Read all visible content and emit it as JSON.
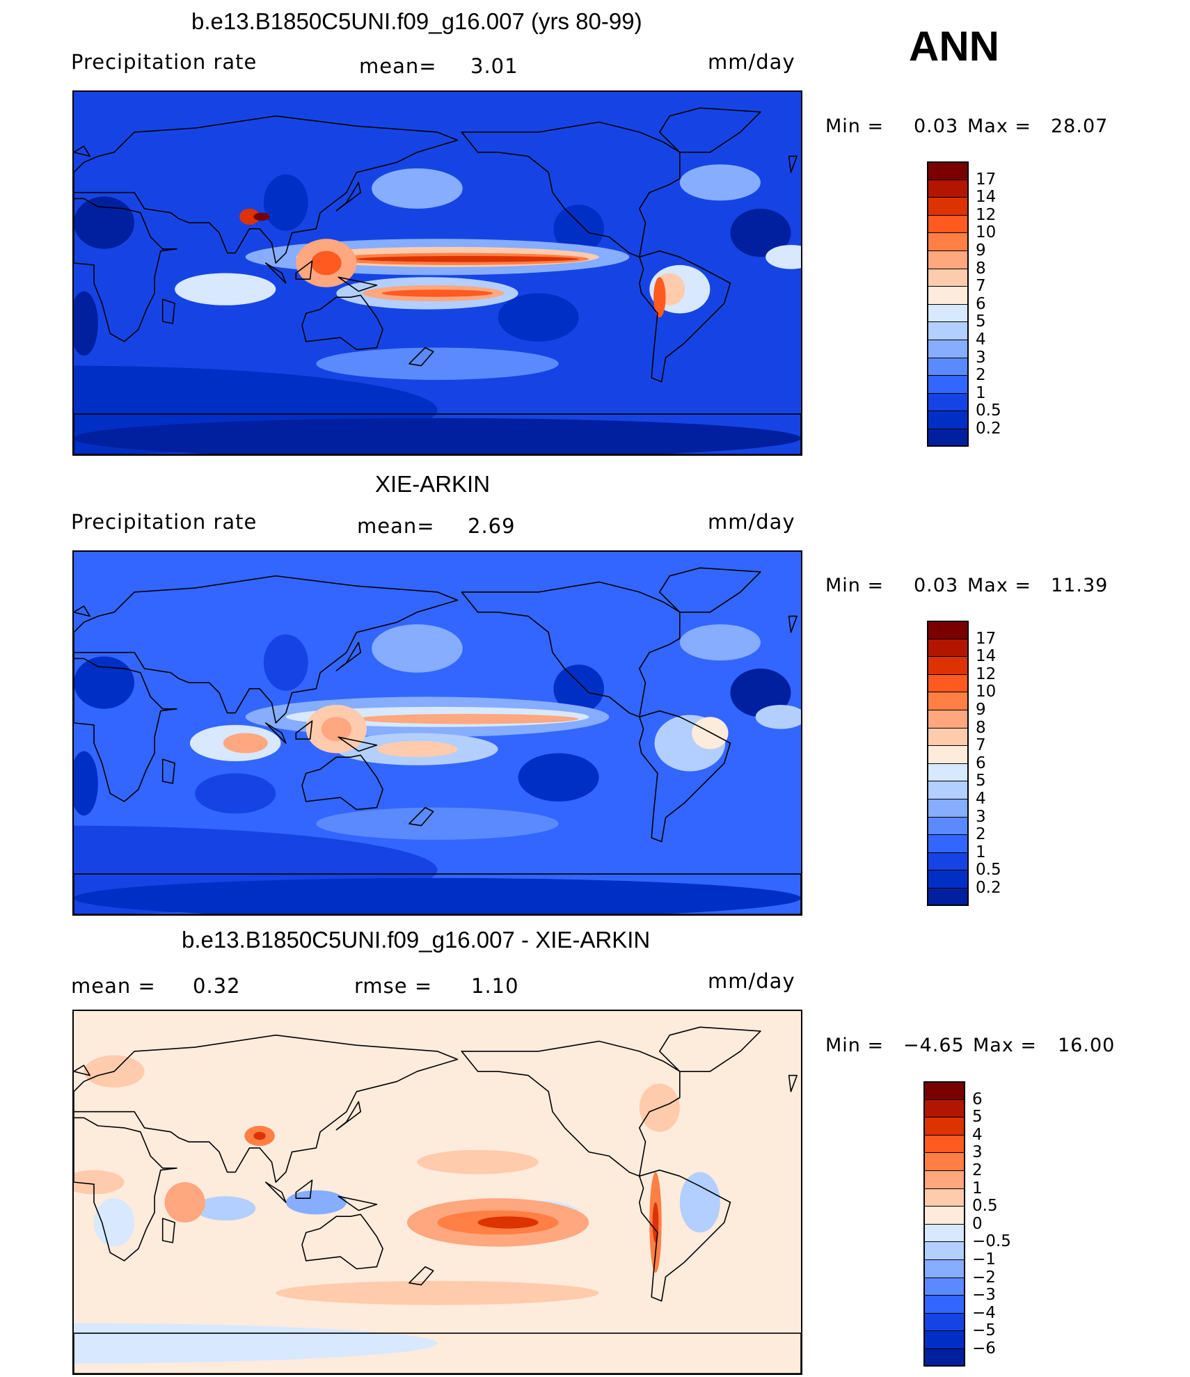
{
  "season": "ANN",
  "panels": [
    {
      "title": "b.e13.B1850C5UNI.f09_g16.007 (yrs 80-99)",
      "left_label": "Precipitation  rate",
      "mean_label": "mean=",
      "mean_value": "3.01",
      "units": "mm/day",
      "min_label": "Min  =",
      "min_value": "0.03",
      "max_label": "Max  =",
      "max_value": "28.07"
    },
    {
      "title": "XIE-ARKIN",
      "left_label": "Precipitation  rate",
      "mean_label": "mean=",
      "mean_value": "2.69",
      "units": "mm/day",
      "min_label": "Min  =",
      "min_value": "0.03",
      "max_label": "Max  =",
      "max_value": "11.39"
    },
    {
      "title": "b.e13.B1850C5UNI.f09_g16.007 - XIE-ARKIN",
      "mean_label": "mean  =",
      "mean_value": "0.32",
      "rmse_label": "rmse  =",
      "rmse_value": "1.10",
      "units": "mm/day",
      "min_label": "Min  =",
      "min_value": "−4.65",
      "max_label": "Max  =",
      "max_value": "16.00"
    }
  ],
  "chart_data": [
    {
      "type": "heatmap",
      "title": "b.e13.B1850C5UNI.f09_g16.007 (yrs 80-99)",
      "variable": "Precipitation  rate",
      "units": "mm/day",
      "mean": 3.01,
      "min": 0.03,
      "max": 28.07,
      "colorbar_levels": [
        "17",
        "14",
        "12",
        "10",
        "9",
        "8",
        "7",
        "6",
        "5",
        "4",
        "3",
        "2",
        "1",
        "0.5",
        "0.2"
      ],
      "colors": [
        "#7a0000",
        "#b31600",
        "#dd3300",
        "#ff5a20",
        "#ff7f45",
        "#ffa77f",
        "#ffcbad",
        "#fdebdc",
        "#d7e8ff",
        "#b2cfff",
        "#86adff",
        "#5b8aff",
        "#3366ff",
        "#1644e4",
        "#002fc6",
        "#0020a0"
      ]
    },
    {
      "type": "heatmap",
      "title": "XIE-ARKIN",
      "variable": "Precipitation  rate",
      "units": "mm/day",
      "mean": 2.69,
      "min": 0.03,
      "max": 11.39,
      "colorbar_levels": [
        "17",
        "14",
        "12",
        "10",
        "9",
        "8",
        "7",
        "6",
        "5",
        "4",
        "3",
        "2",
        "1",
        "0.5",
        "0.2"
      ],
      "colors": [
        "#7a0000",
        "#b31600",
        "#dd3300",
        "#ff5a20",
        "#ff7f45",
        "#ffa77f",
        "#ffcbad",
        "#fdebdc",
        "#d7e8ff",
        "#b2cfff",
        "#86adff",
        "#5b8aff",
        "#3366ff",
        "#1644e4",
        "#002fc6",
        "#0020a0"
      ]
    },
    {
      "type": "heatmap",
      "title": "b.e13.B1850C5UNI.f09_g16.007 - XIE-ARKIN",
      "units": "mm/day",
      "mean": 0.32,
      "rmse": 1.1,
      "min": -4.65,
      "max": 16.0,
      "colorbar_levels": [
        "6",
        "5",
        "4",
        "3",
        "2",
        "1",
        "0.5",
        "0",
        "−0.5",
        "−1",
        "−2",
        "−3",
        "−4",
        "−5",
        "−6"
      ],
      "colors": [
        "#7a0000",
        "#b31600",
        "#dd3300",
        "#ff5a20",
        "#ff7f45",
        "#ffa77f",
        "#ffcbad",
        "#fdebdc",
        "#d7e8ff",
        "#b2cfff",
        "#86adff",
        "#5b8aff",
        "#3366ff",
        "#1644e4",
        "#002fc6",
        "#0020a0"
      ]
    }
  ]
}
